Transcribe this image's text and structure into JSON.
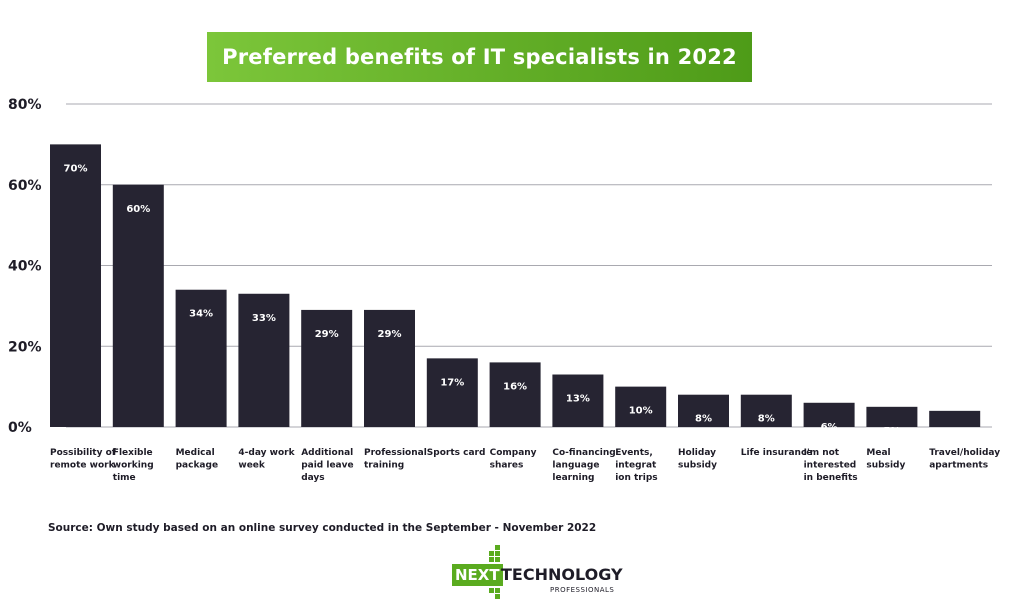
{
  "chart_data": {
    "type": "bar",
    "title": "Preferred benefits of IT specialists in 2022",
    "categories": [
      [
        "Possibility of",
        "remote work"
      ],
      [
        "Flexible",
        "working",
        "time"
      ],
      [
        "Medical",
        "package"
      ],
      [
        "4-day work",
        "week"
      ],
      [
        "Additional",
        "paid leave",
        "days"
      ],
      [
        "Professional",
        "training"
      ],
      [
        "Sports card"
      ],
      [
        "Company",
        "shares"
      ],
      [
        "Co-financing",
        "language",
        "learning"
      ],
      [
        "Events,",
        "integrat",
        "ion trips"
      ],
      [
        "Holiday",
        "subsidy"
      ],
      [
        "Life insurance"
      ],
      [
        "I'm not",
        "interested",
        "in benefits"
      ],
      [
        "Meal",
        "subsidy"
      ],
      [
        "Travel/holiday",
        "apartments"
      ]
    ],
    "values": [
      70,
      60,
      34,
      33,
      29,
      29,
      17,
      16,
      13,
      10,
      8,
      8,
      6,
      5,
      4
    ],
    "value_labels": [
      "70%",
      "60%",
      "34%",
      "33%",
      "29%",
      "29%",
      "17%",
      "16%",
      "13%",
      "10%",
      "8%",
      "8%",
      "6%",
      "5%",
      "4%"
    ],
    "yticks": [
      0,
      20,
      40,
      60,
      80
    ],
    "ytick_labels": [
      "0%",
      "20%",
      "40%",
      "60%",
      "80%"
    ],
    "ylim": [
      0,
      80
    ],
    "grid": true,
    "bar_color": "#262432",
    "accent_color": "#6ab42c"
  },
  "footer": {
    "source": "Source: Own study based on an online survey conducted in the September - November 2022"
  },
  "logo": {
    "next": "NEXT",
    "technology": "TECHNOLOGY",
    "professionals": "PROFESSIONALS"
  }
}
